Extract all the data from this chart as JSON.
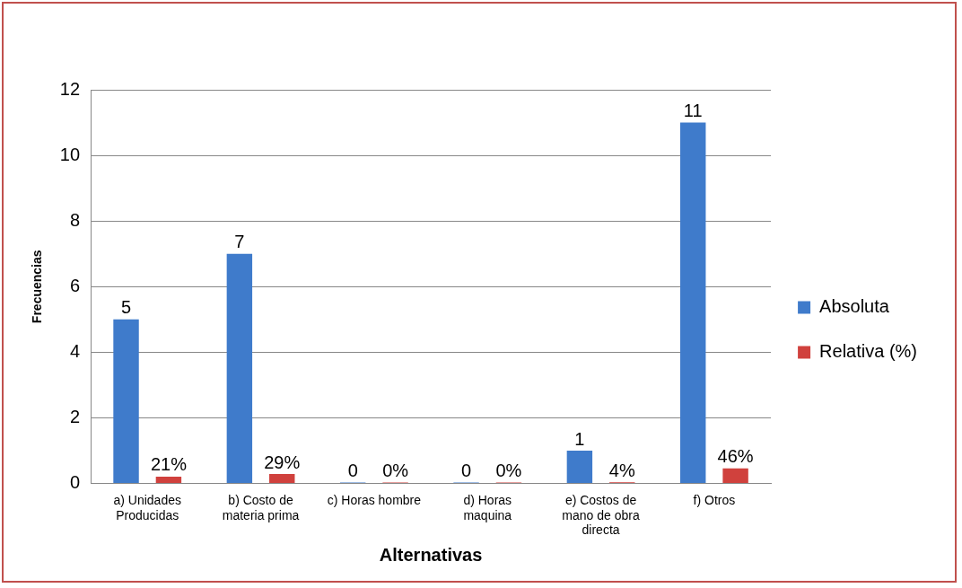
{
  "chart_data": {
    "type": "bar",
    "xlabel": "Alternativas",
    "ylabel": "Frecuencias",
    "categories": [
      "a) Unidades Producidas",
      "b) Costo de materia prima",
      "c) Horas hombre",
      "d) Horas maquina",
      "e) Costos de mano de obra directa",
      "f) Otros"
    ],
    "series": [
      {
        "name": "Absoluta",
        "color": "#3f7bcb",
        "values": [
          5,
          7,
          0,
          0,
          1,
          11
        ],
        "value_labels": [
          "5",
          "7",
          "0",
          "0",
          "1",
          "11"
        ]
      },
      {
        "name": "Relativa (%)",
        "color": "#d0413d",
        "values": [
          0.21,
          0.29,
          0,
          0,
          0.04,
          0.46
        ],
        "value_labels": [
          "21%",
          "29%",
          "0%",
          "0%",
          "4%",
          "46%"
        ]
      }
    ],
    "ylim": [
      0,
      12
    ],
    "yticks": [
      0,
      2,
      4,
      6,
      8,
      10,
      12
    ],
    "grid": "y",
    "legend": "right"
  }
}
